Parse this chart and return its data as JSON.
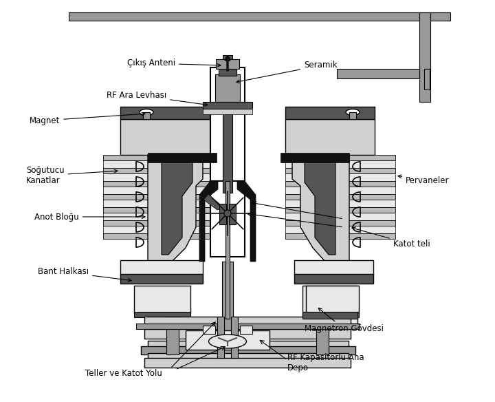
{
  "labels": {
    "cikis_anteni": "Çıkış Anteni",
    "seramik": "Seramik",
    "rf_ara_levhasi": "RF Ara Levhası",
    "magnet": "Magnet",
    "sogutucu_kanatlar": "Soğutucu\nKanatlar",
    "anot_blogu": "Anot Bloğu",
    "bant_halkasi": "Bant Halkası",
    "pervaneler": "Pervaneler",
    "katot_teli": "Katot teli",
    "magnetron_govdesi": "Magnetron Gövdesi",
    "teller_katot": "Teller ve Katot Yolu",
    "rf_kapasitorlu": "RF Kapasitörlü Ana\nDepo"
  },
  "colors": {
    "light_gray": "#d0d0d0",
    "mid_gray": "#999999",
    "dark_gray": "#555555",
    "black": "#111111",
    "white": "#ffffff",
    "very_light_gray": "#e8e8e8",
    "fin_gray": "#bbbbbb"
  }
}
